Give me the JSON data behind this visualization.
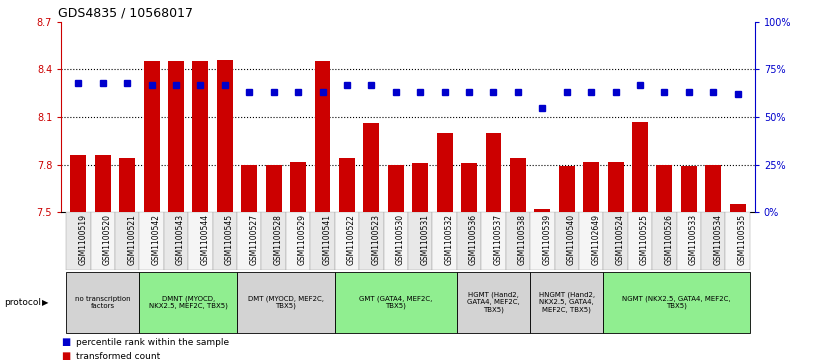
{
  "title": "GDS4835 / 10568017",
  "samples": [
    "GSM1100519",
    "GSM1100520",
    "GSM1100521",
    "GSM1100542",
    "GSM1100543",
    "GSM1100544",
    "GSM1100545",
    "GSM1100527",
    "GSM1100528",
    "GSM1100529",
    "GSM1100541",
    "GSM1100522",
    "GSM1100523",
    "GSM1100530",
    "GSM1100531",
    "GSM1100532",
    "GSM1100536",
    "GSM1100537",
    "GSM1100538",
    "GSM1100539",
    "GSM1100540",
    "GSM1102649",
    "GSM1100524",
    "GSM1100525",
    "GSM1100526",
    "GSM1100533",
    "GSM1100534",
    "GSM1100535"
  ],
  "bar_values": [
    7.86,
    7.86,
    7.84,
    8.45,
    8.45,
    8.45,
    8.46,
    7.8,
    7.8,
    7.82,
    8.45,
    7.84,
    8.06,
    7.8,
    7.81,
    8.0,
    7.81,
    8.0,
    7.84,
    7.52,
    7.79,
    7.82,
    7.82,
    8.07,
    7.8,
    7.79,
    7.8,
    7.55
  ],
  "percentile_values": [
    68,
    68,
    68,
    67,
    67,
    67,
    67,
    63,
    63,
    63,
    63,
    67,
    67,
    63,
    63,
    63,
    63,
    63,
    63,
    55,
    63,
    63,
    63,
    67,
    63,
    63,
    63,
    62
  ],
  "ylim_left": [
    7.5,
    8.7
  ],
  "ylim_right": [
    0,
    100
  ],
  "yticks_left": [
    7.5,
    7.8,
    8.1,
    8.4,
    8.7
  ],
  "yticks_right": [
    0,
    25,
    50,
    75,
    100
  ],
  "bar_color": "#CC0000",
  "dot_color": "#0000CC",
  "protocol_groups": [
    {
      "label": "no transcription\nfactors",
      "start": 0,
      "end": 3,
      "color": "#d3d3d3"
    },
    {
      "label": "DMNT (MYOCD,\nNKX2.5, MEF2C, TBX5)",
      "start": 3,
      "end": 7,
      "color": "#90EE90"
    },
    {
      "label": "DMT (MYOCD, MEF2C,\nTBX5)",
      "start": 7,
      "end": 11,
      "color": "#d3d3d3"
    },
    {
      "label": "GMT (GATA4, MEF2C,\nTBX5)",
      "start": 11,
      "end": 16,
      "color": "#90EE90"
    },
    {
      "label": "HGMT (Hand2,\nGATA4, MEF2C,\nTBX5)",
      "start": 16,
      "end": 19,
      "color": "#d3d3d3"
    },
    {
      "label": "HNGMT (Hand2,\nNKX2.5, GATA4,\nMEF2C, TBX5)",
      "start": 19,
      "end": 22,
      "color": "#d3d3d3"
    },
    {
      "label": "NGMT (NKX2.5, GATA4, MEF2C,\nTBX5)",
      "start": 22,
      "end": 28,
      "color": "#90EE90"
    }
  ],
  "left_axis_color": "#CC0000",
  "right_axis_color": "#0000CC",
  "ytick_grid_values": [
    7.8,
    8.1,
    8.4
  ]
}
